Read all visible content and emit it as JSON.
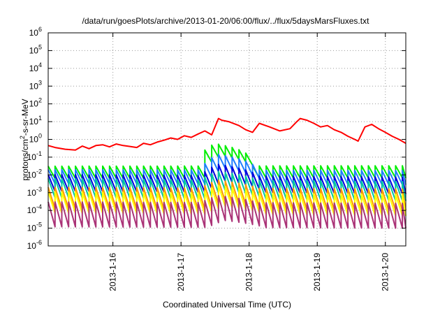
{
  "chart_data": {
    "type": "line",
    "title": "/data/run/goesPlots/archive/2013-01-20/06:00/flux/../flux/5daysMarsFluxes.txt",
    "xlabel": "Coordinated Universal Time (UTC)",
    "ylabel": "protons/cm2-s-sr-MeV",
    "yscale": "log",
    "ylim": [
      1e-06,
      1000000.0
    ],
    "xlim": [
      15.05,
      20.3
    ],
    "grid": "dotted, both axes",
    "x_ticks": [
      {
        "value": 16,
        "label": "2013-1-16"
      },
      {
        "value": 17,
        "label": "2013-1-17"
      },
      {
        "value": 18,
        "label": "2013-1-18"
      },
      {
        "value": 19,
        "label": "2013-1-19"
      },
      {
        "value": 20,
        "label": "2013-1-20"
      }
    ],
    "y_ticks": [
      {
        "exp": "6"
      },
      {
        "exp": "5"
      },
      {
        "exp": "4"
      },
      {
        "exp": "3"
      },
      {
        "exp": "2"
      },
      {
        "exp": "1"
      },
      {
        "exp": "0"
      },
      {
        "exp": "-1"
      },
      {
        "exp": "-2"
      },
      {
        "exp": "-3"
      },
      {
        "exp": "-4"
      },
      {
        "exp": "-5"
      },
      {
        "exp": "-6"
      }
    ],
    "series": [
      {
        "color": "#ff0000",
        "x": [
          15.05,
          15.15,
          15.3,
          15.45,
          15.55,
          15.65,
          15.75,
          15.85,
          15.95,
          16.05,
          16.15,
          16.25,
          16.35,
          16.45,
          16.55,
          16.65,
          16.75,
          16.85,
          16.95,
          17.05,
          17.15,
          17.25,
          17.35,
          17.45,
          17.55,
          17.6,
          17.7,
          17.85,
          17.95,
          18.05,
          18.15,
          18.3,
          18.45,
          18.6,
          18.7,
          18.75,
          18.85,
          18.95,
          19.05,
          19.15,
          19.25,
          19.35,
          19.45,
          19.55,
          19.6,
          19.7,
          19.8,
          19.9,
          20.0,
          20.1,
          20.2,
          20.3
        ],
        "values": [
          0.45,
          0.35,
          0.28,
          0.25,
          0.42,
          0.3,
          0.45,
          0.5,
          0.38,
          0.55,
          0.45,
          0.4,
          0.35,
          0.6,
          0.5,
          0.7,
          0.9,
          1.2,
          1.0,
          1.6,
          1.3,
          2.0,
          3.0,
          1.8,
          15,
          12,
          10,
          6,
          3.5,
          2.5,
          8,
          5,
          3,
          4,
          10,
          15,
          12,
          8,
          5,
          6,
          3.5,
          2.5,
          1.5,
          1.0,
          0.8,
          5.0,
          7.0,
          4.0,
          2.5,
          1.5,
          1.0,
          0.6
        ]
      },
      {
        "color": "#00ee00",
        "base": 0.014,
        "surge": [
          17.25,
          0.25
        ],
        "period": 0.1,
        "amp": 2.2,
        "end": 0.015
      },
      {
        "color": "#1e7eff",
        "base": 0.008,
        "surge": [
          17.3,
          0.05
        ],
        "period": 0.1,
        "amp": 2.5,
        "end": 0.007
      },
      {
        "color": "#0000dd",
        "base": 0.0035,
        "surge": [
          17.3,
          0.01
        ],
        "period": 0.1,
        "amp": 3.0,
        "end": 0.0025
      },
      {
        "color": "#00c8a0",
        "base": 0.0018,
        "surge": [
          17.3,
          0.003
        ],
        "period": 0.1,
        "amp": 3.5,
        "end": 0.0012
      },
      {
        "color": "#ff9900",
        "base": 0.0005,
        "surge": [
          17.3,
          0.0008
        ],
        "period": 0.1,
        "amp": 4.0,
        "end": 0.0004
      },
      {
        "color": "#ffff00",
        "base": 0.00028,
        "surge": [
          17.3,
          0.0004
        ],
        "period": 0.1,
        "amp": 4.0,
        "end": 0.0002
      },
      {
        "color": "#aa3377",
        "base": 6e-05,
        "surge": [
          17.3,
          8e-05
        ],
        "period": 0.1,
        "amp": 5.0,
        "end": 5e-05
      }
    ]
  }
}
